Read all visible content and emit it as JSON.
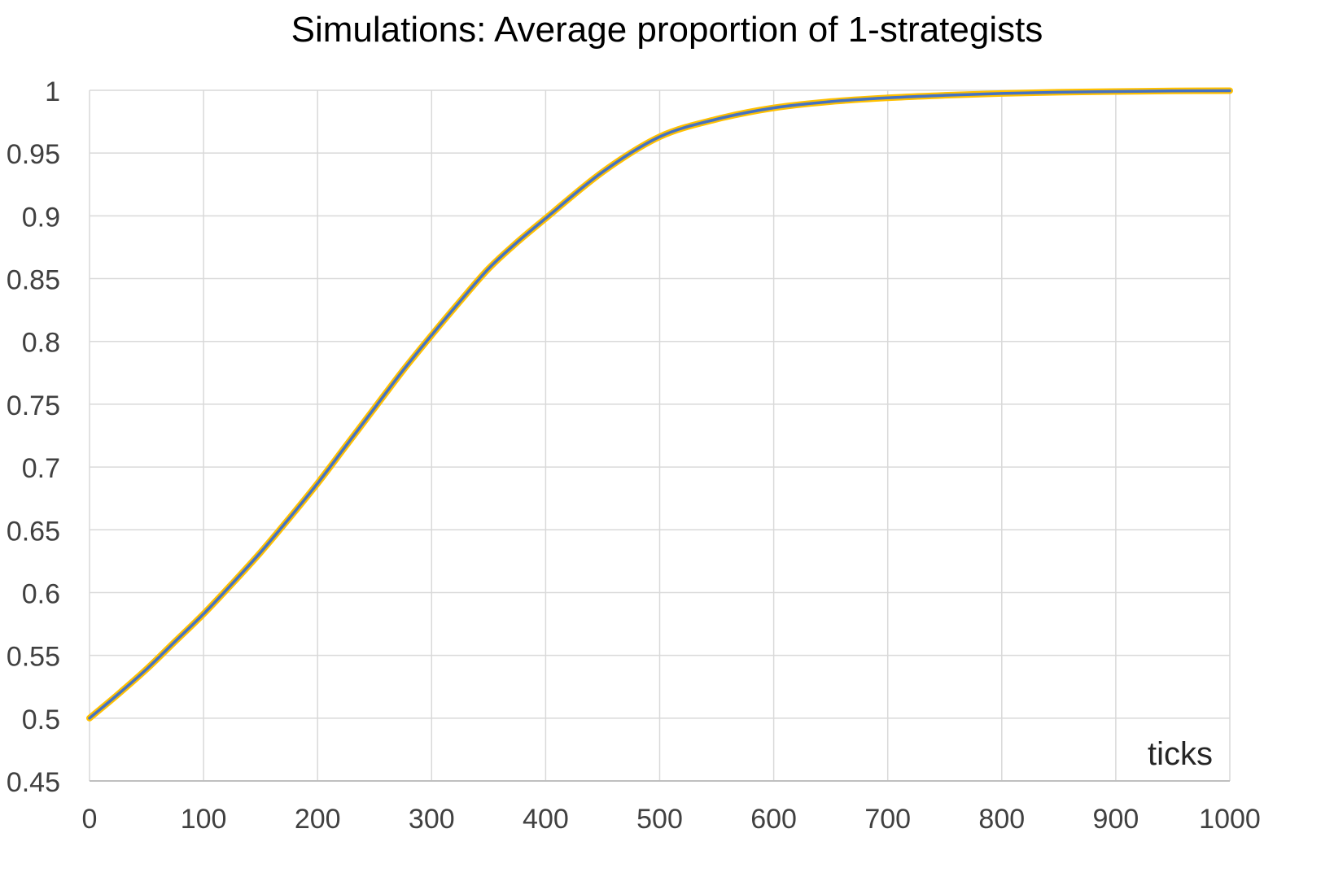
{
  "chart_data": {
    "type": "line",
    "title": "Simulations: Average proportion of 1-strategists",
    "xlabel": "ticks",
    "ylabel": "",
    "xlim": [
      0,
      1000
    ],
    "ylim": [
      0.45,
      1
    ],
    "x_ticks": [
      "0",
      "100",
      "200",
      "300",
      "400",
      "500",
      "600",
      "700",
      "800",
      "900",
      "1000"
    ],
    "y_ticks": [
      "0.45",
      "0.5",
      "0.55",
      "0.6",
      "0.65",
      "0.7",
      "0.75",
      "0.8",
      "0.85",
      "0.9",
      "0.95",
      "1"
    ],
    "grid": true,
    "legend": "none",
    "series": [
      {
        "color": "#FFC000",
        "x": [
          0,
          25,
          50,
          75,
          100,
          125,
          150,
          175,
          200,
          225,
          250,
          275,
          300,
          325,
          350,
          375,
          400,
          450,
          500,
          550,
          600,
          650,
          700,
          750,
          800,
          850,
          900,
          950,
          1000
        ],
        "y": [
          0.5,
          0.519,
          0.539,
          0.561,
          0.583,
          0.607,
          0.632,
          0.659,
          0.687,
          0.717,
          0.747,
          0.777,
          0.805,
          0.832,
          0.858,
          0.879,
          0.898,
          0.935,
          0.963,
          0.977,
          0.986,
          0.991,
          0.994,
          0.996,
          0.9975,
          0.9985,
          0.999,
          0.9995,
          0.9997
        ]
      },
      {
        "color": "#4472C4",
        "x": [
          0,
          25,
          50,
          75,
          100,
          125,
          150,
          175,
          200,
          225,
          250,
          275,
          300,
          325,
          350,
          375,
          400,
          450,
          500,
          550,
          600,
          650,
          700,
          750,
          800,
          850,
          900,
          950,
          1000
        ],
        "y": [
          0.5,
          0.519,
          0.539,
          0.561,
          0.583,
          0.607,
          0.632,
          0.659,
          0.687,
          0.717,
          0.747,
          0.777,
          0.805,
          0.832,
          0.858,
          0.879,
          0.898,
          0.935,
          0.963,
          0.977,
          0.986,
          0.991,
          0.994,
          0.996,
          0.9975,
          0.9985,
          0.999,
          0.9995,
          0.9997
        ]
      }
    ]
  }
}
